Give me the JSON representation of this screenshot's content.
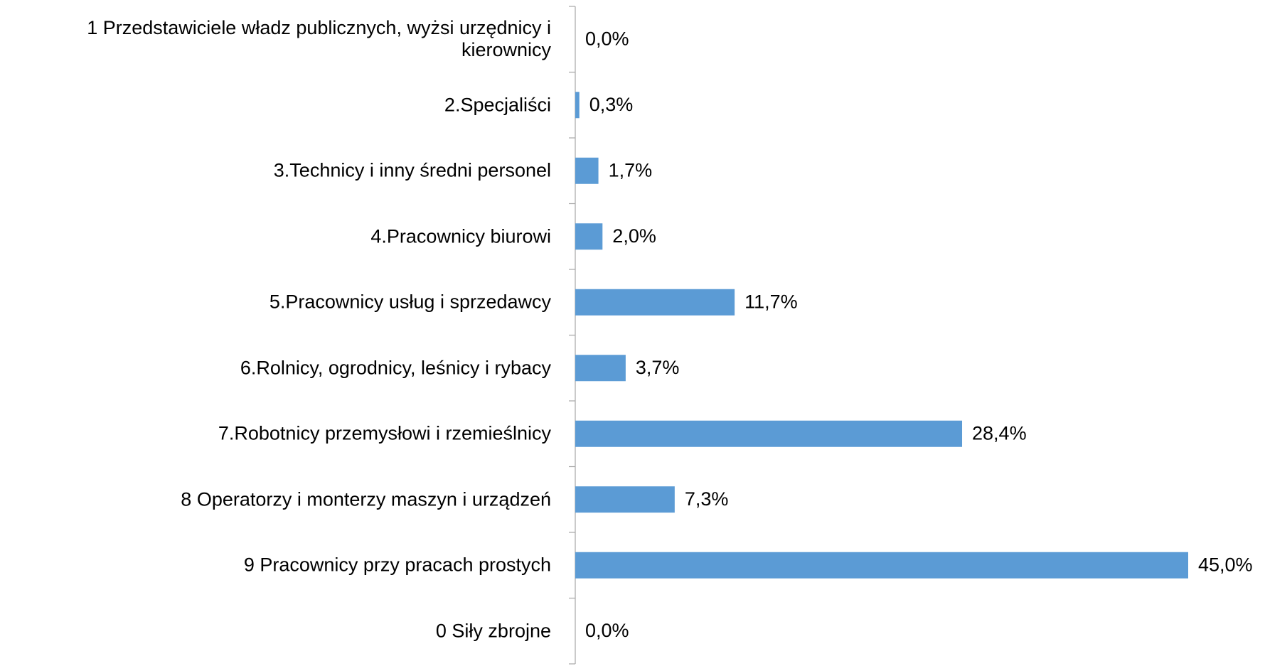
{
  "chart_data": {
    "type": "barh",
    "categories": [
      "1 Przedstawiciele władz publicznych, wyżsi urzędnicy i kierownicy",
      "2.Specjaliści",
      "3.Technicy i inny średni personel",
      "4.Pracownicy biurowi",
      "5.Pracownicy usług i sprzedawcy",
      "6.Rolnicy, ogrodnicy, leśnicy i rybacy",
      "7.Robotnicy przemysłowi i rzemieślnicy",
      "8 Operatorzy i monterzy maszyn i urządzeń",
      "9 Pracownicy przy pracach prostych",
      "0 Siły zbrojne"
    ],
    "values": [
      0.0,
      0.3,
      1.7,
      2.0,
      11.7,
      3.7,
      28.4,
      7.3,
      45.0,
      0.0
    ],
    "value_labels": [
      "0,0%",
      "0,3%",
      "1,7%",
      "2,0%",
      "11,7%",
      "3,7%",
      "28,4%",
      "7,3%",
      "45,0%",
      "0,0%"
    ],
    "color": "#5b9bd5"
  }
}
